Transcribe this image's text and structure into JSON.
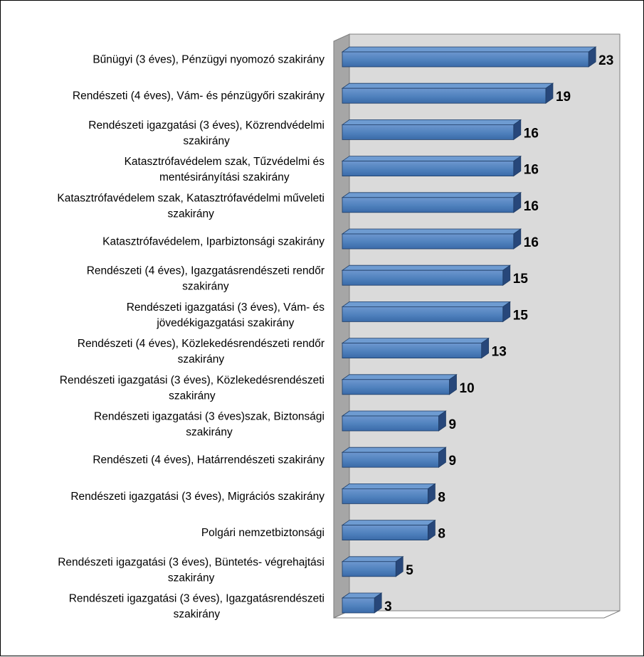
{
  "chart_data": {
    "type": "bar",
    "orientation": "horizontal",
    "style": "3d-clustered",
    "title": "",
    "xlabel": "",
    "ylabel": "",
    "xlim": [
      0,
      25
    ],
    "grid": false,
    "legend": "none",
    "colors": {
      "bar_front": "#4F81BD",
      "bar_top": "#6E9BD1",
      "bar_side": "#27477A",
      "wall": "#DADADA",
      "floor": "#A6A6A6"
    },
    "categories": [
      "Bűnügyi (3 éves), Pénzügyi nyomozó szakirány",
      "Rendészeti (4 éves), Vám- és pénzügyőri szakirány",
      "Rendészeti igazgatási (3 éves),  Közrendvédelmi szakirány",
      "Katasztrófavédelem szak, Tűzvédelmi és mentésirányítási szakirány",
      "Katasztrófavédelem szak, Katasztrófavédelmi műveleti szakirány",
      "Katasztrófavédelem, Iparbiztonsági szakirány",
      "Rendészeti (4 éves), Igazgatásrendészeti rendőr szakirány",
      "Rendészeti igazgatási (3 éves),  Vám- és jövedékigazgatási szakirány",
      "Rendészeti (4 éves), Közlekedésrendészeti rendőr szakirány",
      "Rendészeti igazgatási (3 éves), Közlekedésrendészeti szakirány",
      "Rendészeti igazgatási (3 éves)szak, Biztonsági szakirány",
      "Rendészeti (4 éves), Határrendészeti szakirány",
      "Rendészeti igazgatási (3 éves),  Migrációs szakirány",
      "Polgári nemzetbiztonsági",
      "Rendészeti igazgatási (3 éves),  Büntetés- végrehajtási szakirány",
      "Rendészeti igazgatási (3 éves),  Igazgatásrendészeti szakirány"
    ],
    "label_lines": [
      [
        "Bűnügyi (3 éves), Pénzügyi nyomozó szakirány"
      ],
      [
        "Rendészeti (4 éves), Vám- és pénzügyőri szakirány"
      ],
      [
        "Rendészeti igazgatási (3 éves),  Közrendvédelmi",
        "szakirány"
      ],
      [
        "Katasztrófavédelem szak, Tűzvédelmi és",
        "mentésirányítási szakirány"
      ],
      [
        "Katasztrófavédelem szak, Katasztrófavédelmi műveleti",
        "szakirány"
      ],
      [
        "Katasztrófavédelem, Iparbiztonsági szakirány"
      ],
      [
        "Rendészeti (4 éves), Igazgatásrendészeti rendőr",
        "szakirány"
      ],
      [
        "Rendészeti igazgatási (3 éves),  Vám- és",
        "jövedékigazgatási szakirány"
      ],
      [
        "Rendészeti (4 éves), Közlekedésrendészeti rendőr",
        "szakirány"
      ],
      [
        "Rendészeti igazgatási (3 éves), Közlekedésrendészeti",
        "szakirány"
      ],
      [
        "Rendészeti igazgatási (3 éves)szak, Biztonsági",
        "szakirány"
      ],
      [
        "Rendészeti (4 éves), Határrendészeti szakirány"
      ],
      [
        "Rendészeti igazgatási (3 éves),  Migrációs szakirány"
      ],
      [
        "Polgári nemzetbiztonsági"
      ],
      [
        "Rendészeti igazgatási (3 éves),  Büntetés- végrehajtási",
        "szakirány"
      ],
      [
        "Rendészeti igazgatási (3 éves),  Igazgatásrendészeti",
        "szakirány"
      ]
    ],
    "values": [
      23,
      19,
      16,
      16,
      16,
      16,
      15,
      15,
      13,
      10,
      9,
      9,
      8,
      8,
      5,
      3
    ]
  }
}
